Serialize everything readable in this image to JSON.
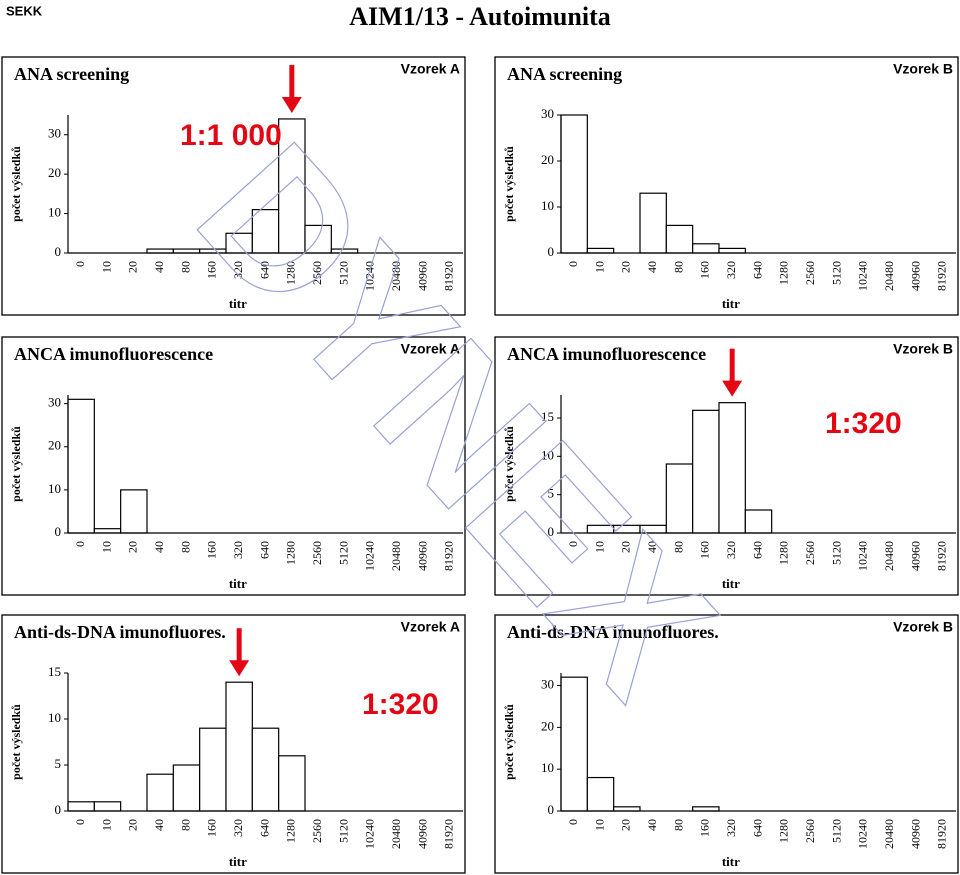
{
  "header": {
    "logo": "SEKK",
    "title": "AIM1/13 - Autoimunita",
    "watermark": "DYNEX"
  },
  "chart_data": [
    {
      "type": "bar",
      "title": "ANA screening",
      "sample": "Vzorek A",
      "y_label": "počet výsledků",
      "x_label": "titr",
      "categories": [
        "0",
        "10",
        "20",
        "40",
        "80",
        "160",
        "320",
        "640",
        "1280",
        "2560",
        "5120",
        "10240",
        "20480",
        "40960",
        "81920"
      ],
      "values": [
        0,
        0,
        0,
        1,
        1,
        1,
        5,
        11,
        34,
        7,
        1,
        0,
        0,
        0,
        0
      ],
      "color": "#ffffff",
      "ylim": [
        0,
        35
      ],
      "yticks": [
        0,
        10,
        20,
        30
      ],
      "annotation": "1:1 000",
      "highlight": "1280"
    },
    {
      "type": "bar",
      "title": "ANA screening",
      "sample": "Vzorek B",
      "y_label": "počet výsledků",
      "x_label": "titr",
      "categories": [
        "0",
        "10",
        "20",
        "40",
        "80",
        "160",
        "320",
        "640",
        "1280",
        "2560",
        "5120",
        "10240",
        "20480",
        "40960",
        "81920"
      ],
      "values": [
        30,
        1,
        0,
        13,
        6,
        2,
        1,
        0,
        0,
        0,
        0,
        0,
        0,
        0,
        0
      ],
      "color": "#ffffff",
      "ylim": [
        0,
        30
      ],
      "yticks": [
        0,
        10,
        20,
        30
      ]
    },
    {
      "type": "bar",
      "title": "ANCA imunofluorescence",
      "sample": "Vzorek A",
      "y_label": "počet výsledků",
      "x_label": "titr",
      "categories": [
        "0",
        "10",
        "20",
        "40",
        "80",
        "160",
        "320",
        "640",
        "1280",
        "2560",
        "5120",
        "10240",
        "20480",
        "40960",
        "81920"
      ],
      "values": [
        31,
        1,
        10,
        0,
        0,
        0,
        0,
        0,
        0,
        0,
        0,
        0,
        0,
        0,
        0
      ],
      "color": "#ffffff",
      "ylim": [
        0,
        32
      ],
      "yticks": [
        0,
        10,
        20,
        30
      ]
    },
    {
      "type": "bar",
      "title": "ANCA imunofluorescence",
      "sample": "Vzorek B",
      "y_label": "počet výsledků",
      "x_label": "titr",
      "categories": [
        "0",
        "10",
        "20",
        "40",
        "80",
        "160",
        "320",
        "640",
        "1280",
        "2560",
        "5120",
        "10240",
        "20480",
        "40960",
        "81920"
      ],
      "values": [
        0,
        1,
        1,
        1,
        9,
        16,
        17,
        3,
        0,
        0,
        0,
        0,
        0,
        0,
        0
      ],
      "color": "#ffffff",
      "ylim": [
        0,
        18
      ],
      "yticks": [
        0,
        5,
        10,
        15
      ],
      "annotation": "1:320",
      "highlight": "320"
    },
    {
      "type": "bar",
      "title": "Anti-ds-DNA imunofluores.",
      "sample": "Vzorek A",
      "y_label": "počet výsledků",
      "x_label": "titr",
      "categories": [
        "0",
        "10",
        "20",
        "40",
        "80",
        "160",
        "320",
        "640",
        "1280",
        "2560",
        "5120",
        "10240",
        "20480",
        "40960",
        "81920"
      ],
      "values": [
        1,
        1,
        0,
        4,
        5,
        9,
        14,
        9,
        6,
        0,
        0,
        0,
        0,
        0,
        0
      ],
      "color": "#ffffff",
      "ylim": [
        0,
        15
      ],
      "yticks": [
        0,
        5,
        10,
        15
      ],
      "annotation": "1:320",
      "highlight": "320"
    },
    {
      "type": "bar",
      "title": "Anti-ds-DNA imunofluores.",
      "sample": "Vzorek B",
      "y_label": "počet výsledků",
      "x_label": "titr",
      "categories": [
        "0",
        "10",
        "20",
        "40",
        "80",
        "160",
        "320",
        "640",
        "1280",
        "2560",
        "5120",
        "10240",
        "20480",
        "40960",
        "81920"
      ],
      "values": [
        32,
        8,
        1,
        0,
        0,
        1,
        0,
        0,
        0,
        0,
        0,
        0,
        0,
        0,
        0
      ],
      "color": "#ffffff",
      "ylim": [
        0,
        33
      ],
      "yticks": [
        0,
        10,
        20,
        30
      ]
    }
  ]
}
